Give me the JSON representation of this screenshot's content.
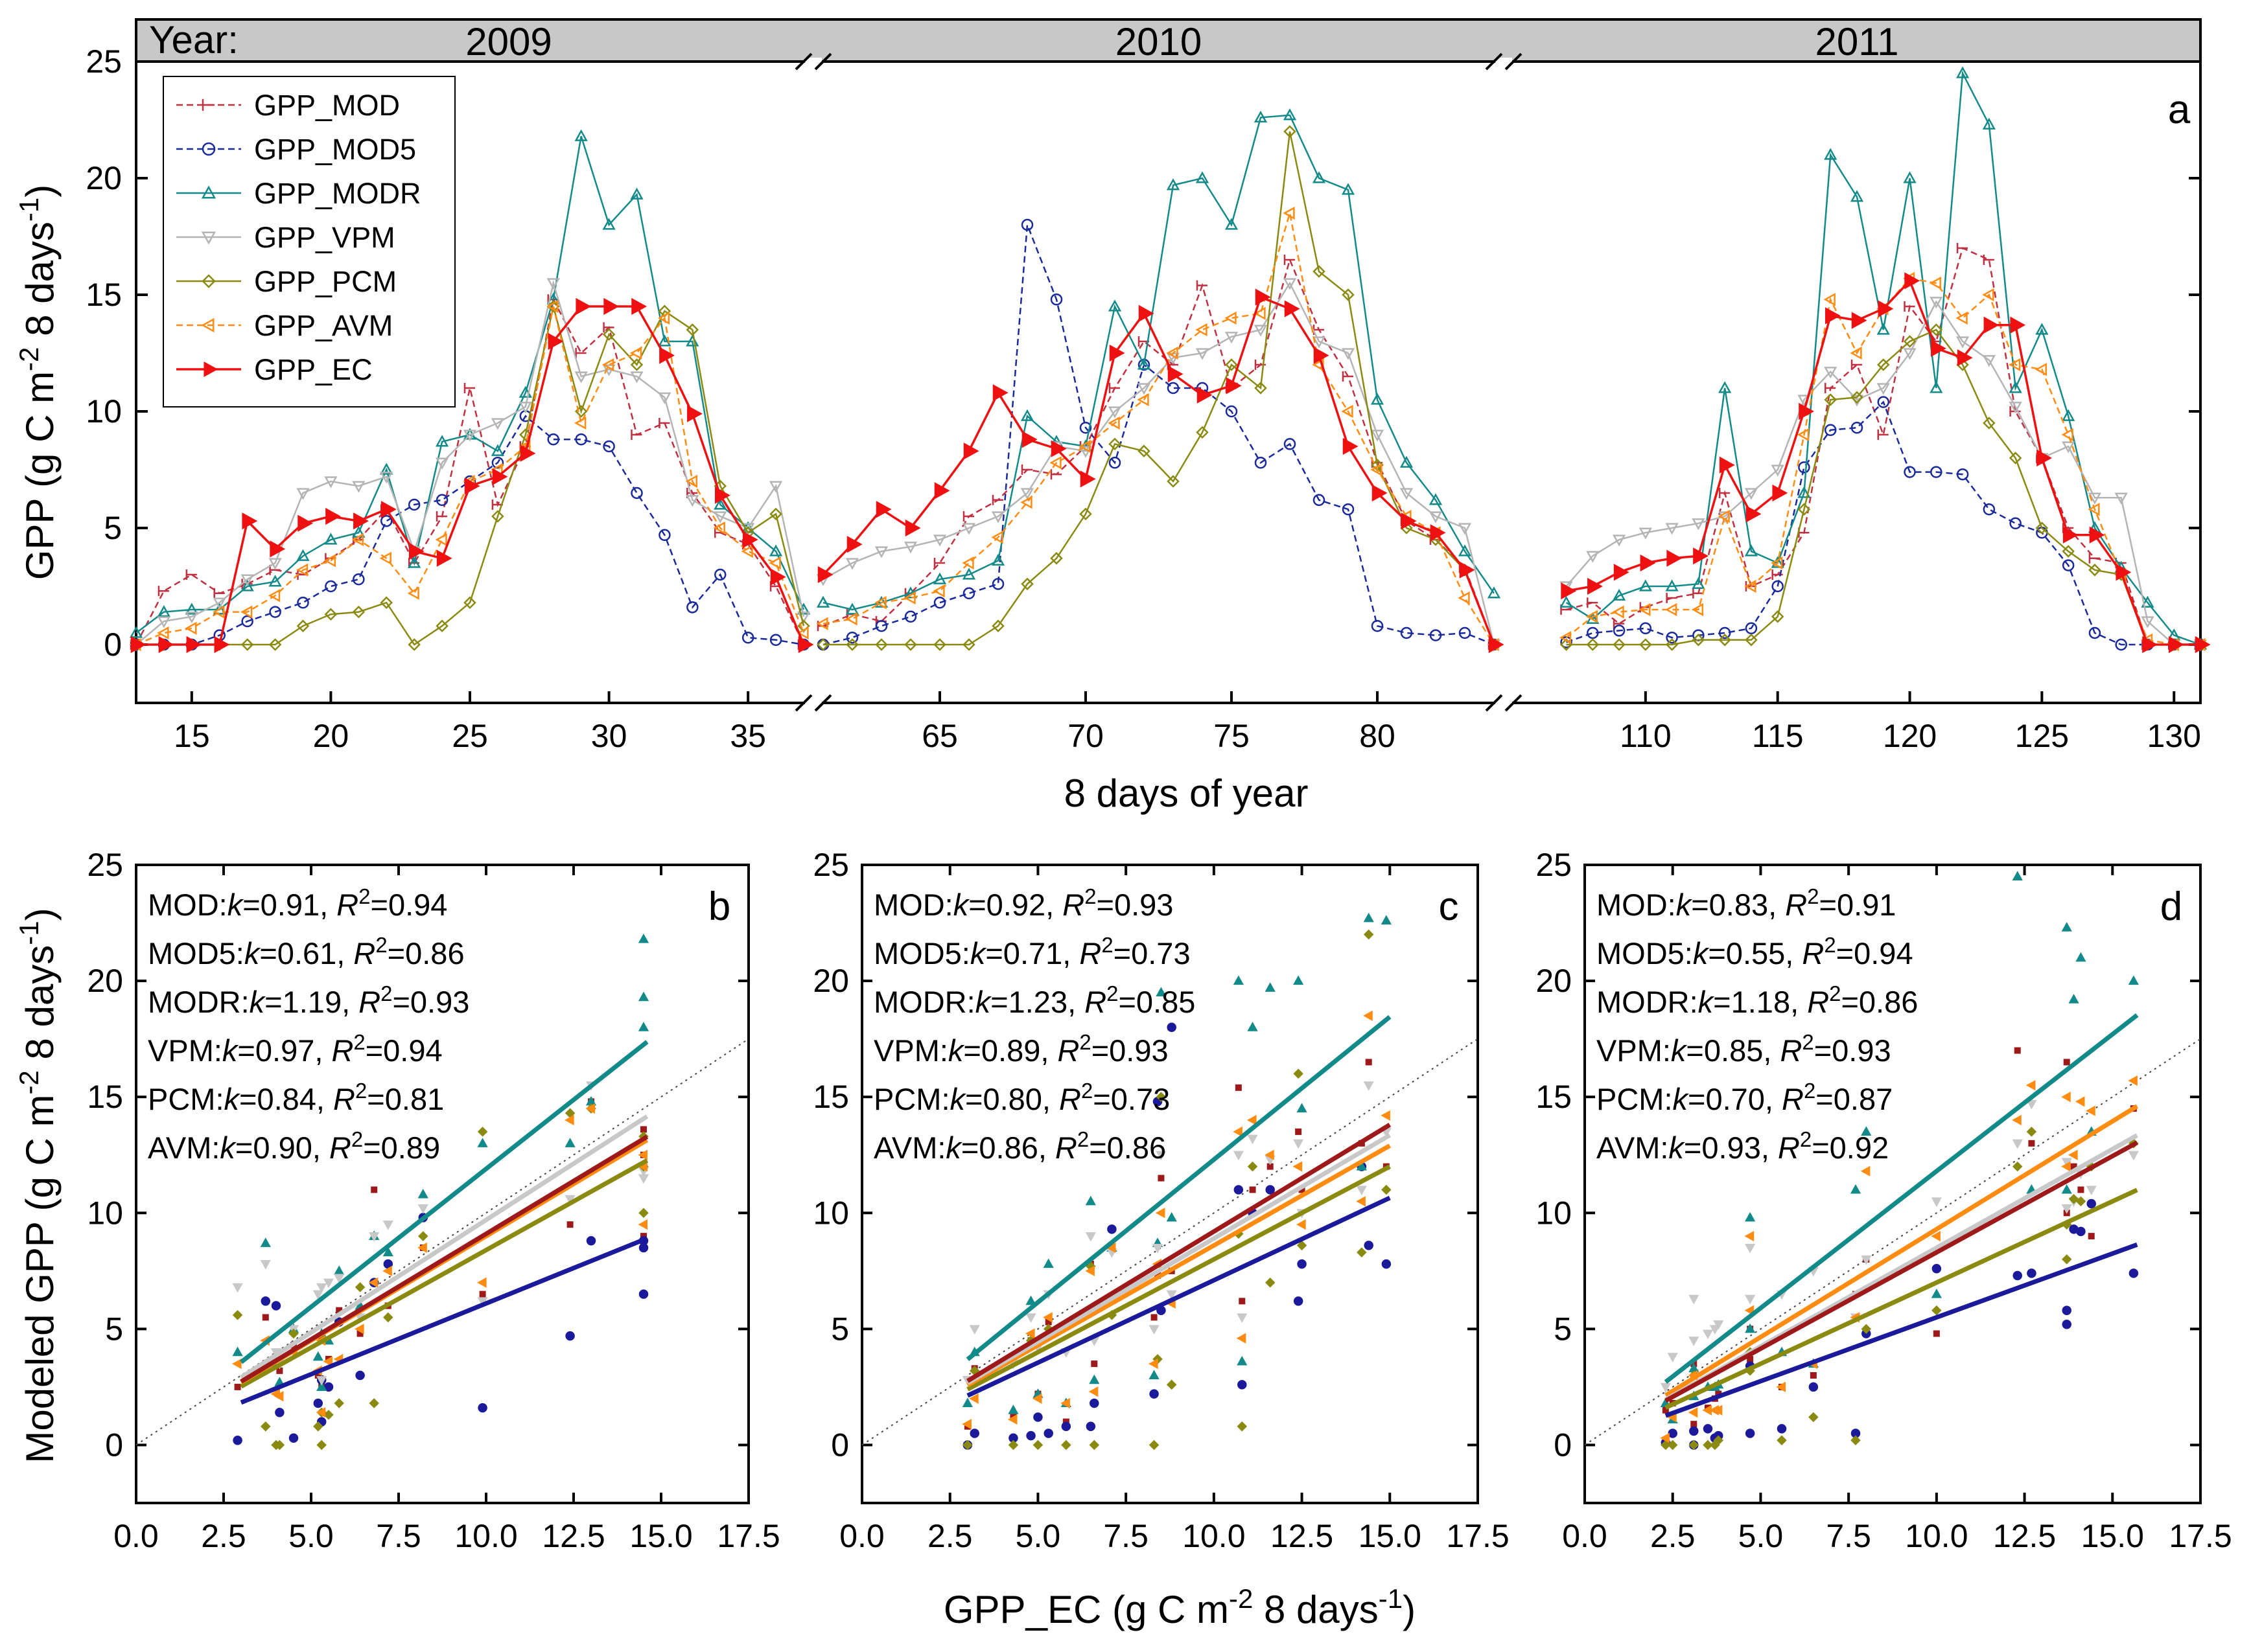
{
  "colors": {
    "GPP_MOD": "#c03040",
    "GPP_MOD5": "#1a2a9a",
    "GPP_MODR": "#138a8a",
    "GPP_VPM": "#b4b4b4",
    "GPP_PCM": "#8a8a10",
    "GPP_AVM": "#ff8c10",
    "GPP_EC": "#ee1111",
    "fit_MOD": "#9e1a1a",
    "fit_MOD5": "#1a1a9a",
    "fit_MODR": "#138a8a",
    "fit_VPM": "#c8c8c8",
    "fit_PCM": "#8a8a10",
    "fit_AVM": "#ff8c10"
  },
  "chart_data": [
    {
      "panel": "a",
      "type": "line",
      "ylabel": "GPP (g C m⁻² 8 days⁻¹)",
      "xlabel": "8 days of year",
      "ylim": [
        -2.5,
        25
      ],
      "yticks": [
        "0",
        "5",
        "10",
        "15",
        "20",
        "25"
      ],
      "year_label": "Year:",
      "years": [
        "2009",
        "2010",
        "2011"
      ],
      "segments": [
        {
          "xlim": [
            13,
            37
          ],
          "ticks": [
            15,
            20,
            25,
            30,
            35
          ],
          "x": [
            13,
            14,
            15,
            16,
            17,
            18,
            19,
            20,
            21,
            22,
            23,
            24,
            25,
            26,
            27,
            28,
            29,
            30,
            31,
            32,
            33,
            34,
            35,
            36,
            37
          ]
        },
        {
          "xlim": [
            61,
            84
          ],
          "ticks": [
            65,
            70,
            75,
            80
          ],
          "x": [
            61,
            62,
            63,
            64,
            65,
            66,
            67,
            68,
            69,
            70,
            71,
            72,
            73,
            74,
            75,
            76,
            77,
            78,
            79,
            80,
            81,
            82,
            83,
            84
          ]
        },
        {
          "xlim": [
            105,
            131
          ],
          "ticks": [
            110,
            115,
            120,
            125,
            130
          ],
          "x": [
            107,
            108,
            109,
            110,
            111,
            112,
            113,
            114,
            115,
            116,
            117,
            118,
            119,
            120,
            121,
            122,
            123,
            124,
            125,
            126,
            127,
            128,
            129,
            130,
            131
          ]
        }
      ],
      "series": [
        {
          "name": "GPP_MOD",
          "values": [
            [
              0,
              2.3,
              3.0,
              2.2,
              2.6,
              3.2,
              3.0,
              3.7,
              4.5,
              5.8,
              3.5,
              5.5,
              11.0,
              6.0,
              8.5,
              14.8,
              12.5,
              13.6,
              9.0,
              9.5,
              6.5,
              4.8,
              4.3,
              2.5,
              0
            ],
            [
              0.8,
              1.3,
              1.0,
              2.2,
              3.5,
              5.5,
              6.2,
              7.5,
              7.3,
              8.5,
              11.0,
              13.0,
              12.0,
              15.4,
              11.0,
              12.0,
              16.5,
              13.5,
              11.5,
              7.8,
              5.3,
              4.5,
              3.3,
              0
            ],
            [
              1.5,
              1.8,
              0.9,
              1.6,
              2.0,
              2.2,
              6.5,
              2.5,
              3.0,
              4.8,
              11.0,
              12.0,
              9.0,
              14.5,
              13.0,
              17.0,
              16.5,
              10.0,
              8.0,
              5.0,
              3.7,
              3.5,
              0,
              0,
              0
            ]
          ]
        },
        {
          "name": "GPP_MOD5",
          "values": [
            [
              0,
              0,
              0,
              0.4,
              1.0,
              1.4,
              1.8,
              2.5,
              2.8,
              5.3,
              6.0,
              6.2,
              7.0,
              7.8,
              9.8,
              8.8,
              8.8,
              8.5,
              6.5,
              4.7,
              1.6,
              3.0,
              0.3,
              0.2,
              0
            ],
            [
              0,
              0.3,
              0.8,
              1.2,
              1.8,
              2.2,
              2.6,
              18.0,
              14.8,
              9.3,
              7.8,
              12.0,
              11.0,
              11.0,
              10.0,
              7.8,
              8.6,
              6.2,
              5.8,
              0.8,
              0.5,
              0.4,
              0.5,
              0
            ],
            [
              0.1,
              0.5,
              0.6,
              0.7,
              0.3,
              0.4,
              0.5,
              0.7,
              2.5,
              7.6,
              9.2,
              9.3,
              10.4,
              7.4,
              7.4,
              7.3,
              5.8,
              5.2,
              4.8,
              3.4,
              0.5,
              0,
              0,
              0,
              0
            ]
          ]
        },
        {
          "name": "GPP_MODR",
          "values": [
            [
              0.5,
              1.4,
              1.5,
              1.5,
              2.5,
              2.7,
              3.8,
              4.5,
              4.8,
              7.5,
              3.5,
              8.7,
              9.0,
              8.3,
              10.8,
              14.8,
              21.8,
              18.0,
              19.3,
              13.0,
              13.0,
              6.0,
              5.0,
              4.0,
              1.5
            ],
            [
              1.8,
              1.5,
              1.8,
              2.2,
              2.8,
              3.0,
              3.6,
              9.8,
              8.7,
              8.5,
              14.5,
              12.0,
              19.7,
              20.0,
              18.0,
              22.6,
              22.7,
              20.0,
              19.5,
              10.5,
              7.8,
              6.2,
              4.0,
              2.2
            ],
            [
              1.8,
              1.1,
              2.1,
              2.5,
              2.5,
              2.6,
              11.0,
              4.0,
              3.5,
              6.5,
              21.0,
              19.2,
              13.5,
              20.0,
              11.0,
              24.5,
              22.3,
              11.0,
              13.5,
              9.8,
              5.0,
              3.3,
              1.8,
              0.4,
              0
            ]
          ]
        },
        {
          "name": "GPP_VPM",
          "values": [
            [
              0,
              1.0,
              1.2,
              1.8,
              2.8,
              3.5,
              6.5,
              7.0,
              6.8,
              7.2,
              4.0,
              7.8,
              9.0,
              9.5,
              10.2,
              15.5,
              11.5,
              11.8,
              11.5,
              10.6,
              6.2,
              5.5,
              5.0,
              6.8,
              1.2
            ],
            [
              2.8,
              3.5,
              4.0,
              4.2,
              4.5,
              5.0,
              5.5,
              6.5,
              8.5,
              8.3,
              10.0,
              11.0,
              12.3,
              12.5,
              13.2,
              13.5,
              15.5,
              13.0,
              12.5,
              9.0,
              6.5,
              5.5,
              5.0,
              0
            ],
            [
              2.5,
              3.8,
              4.5,
              4.8,
              5.0,
              5.2,
              5.5,
              6.5,
              7.5,
              10.5,
              11.7,
              10.5,
              11.0,
              12.5,
              14.7,
              13.0,
              12.2,
              10.2,
              8.0,
              8.5,
              6.3,
              6.3,
              1.0,
              0,
              0
            ]
          ]
        },
        {
          "name": "GPP_PCM",
          "values": [
            [
              0,
              0,
              0,
              0,
              0,
              0,
              0.8,
              1.3,
              1.4,
              1.8,
              0,
              0.8,
              1.8,
              5.5,
              9.0,
              14.5,
              10.0,
              13.3,
              12.0,
              14.3,
              13.5,
              6.8,
              4.8,
              5.6,
              0.8
            ],
            [
              0,
              0,
              0,
              0,
              0,
              0,
              0.8,
              2.6,
              3.7,
              5.6,
              8.6,
              8.3,
              7.0,
              9.1,
              12.0,
              11.0,
              22.0,
              16.0,
              15.0,
              7.7,
              5.0,
              4.5,
              3.2,
              0
            ],
            [
              0,
              0,
              0,
              0,
              0,
              0.2,
              0.2,
              0.2,
              1.2,
              5.8,
              10.5,
              10.6,
              12.0,
              13.0,
              13.5,
              12.0,
              9.5,
              8.0,
              5.0,
              4.0,
              3.2,
              3.0,
              0,
              0,
              0
            ]
          ]
        },
        {
          "name": "GPP_AVM",
          "values": [
            [
              0,
              0.5,
              0.7,
              1.4,
              1.4,
              2.1,
              3.2,
              3.6,
              4.5,
              3.7,
              2.2,
              4.5,
              7.0,
              7.5,
              8.5,
              14.5,
              9.5,
              12.0,
              12.5,
              14.0,
              7.0,
              5.0,
              4.0,
              3.5,
              0.5
            ],
            [
              0.9,
              1.1,
              1.8,
              2.0,
              2.3,
              3.5,
              4.6,
              6.1,
              7.8,
              8.5,
              9.5,
              10.5,
              12.5,
              13.5,
              14.0,
              14.2,
              18.5,
              12.0,
              10.0,
              7.5,
              5.5,
              4.8,
              2.0,
              0
            ],
            [
              0.3,
              1.2,
              1.4,
              1.5,
              1.5,
              1.5,
              5.5,
              2.5,
              3.5,
              9.0,
              14.8,
              12.5,
              14.4,
              15.7,
              15.5,
              14.0,
              15.0,
              12.0,
              11.8,
              9.0,
              5.8,
              3.0,
              0.2,
              0,
              0
            ]
          ]
        },
        {
          "name": "GPP_EC",
          "values": [
            [
              0,
              0,
              0,
              0,
              5.3,
              4.1,
              5.2,
              5.5,
              5.3,
              5.8,
              4.0,
              3.7,
              6.8,
              7.2,
              8.2,
              13.0,
              14.5,
              14.5,
              14.5,
              12.4,
              9.9,
              6.4,
              4.5,
              2.9,
              0
            ],
            [
              3.0,
              4.3,
              5.8,
              5.0,
              6.6,
              8.3,
              10.8,
              8.8,
              8.4,
              7.1,
              12.5,
              14.2,
              11.6,
              10.7,
              11.1,
              14.9,
              14.4,
              12.4,
              8.5,
              6.5,
              5.3,
              4.8,
              3.2,
              0
            ],
            [
              2.3,
              2.5,
              3.1,
              3.5,
              3.7,
              3.8,
              7.7,
              5.6,
              6.5,
              10.0,
              14.1,
              13.9,
              14.4,
              15.6,
              12.7,
              12.3,
              13.7,
              13.7,
              8.0,
              4.7,
              4.7,
              3.1,
              0,
              0,
              0
            ]
          ]
        }
      ]
    },
    {
      "panel": "b",
      "type": "scatter",
      "xlabel": "GPP_EC (g C m⁻² 8 days⁻¹)",
      "ylabel": "Modeled GPP (g C m⁻² 8 days⁻¹)",
      "xlim": [
        0,
        17.5
      ],
      "ylim": [
        -2.5,
        25
      ],
      "xticks": [
        "0.0",
        "2.5",
        "5.0",
        "7.5",
        "10.0",
        "12.5",
        "15.0",
        "17.5"
      ],
      "yticks": [
        "0",
        "5",
        "10",
        "15",
        "20",
        "25"
      ],
      "ec_x": [
        2.9,
        3.0,
        3.7,
        4.0,
        4.1,
        4.5,
        5.0,
        5.2,
        5.3,
        5.5,
        5.8,
        6.4,
        6.8,
        7.2,
        8.2,
        9.9,
        12.4,
        13.0,
        14.5,
        14.5
      ],
      "fit_range": [
        3.0,
        14.6
      ],
      "stats": [
        {
          "label": "MOD:",
          "k": "0.91",
          "r2": "0.94"
        },
        {
          "label": "MOD5:",
          "k": "0.61",
          "r2": "0.86"
        },
        {
          "label": "MODR:",
          "k": "1.19",
          "r2": "0.93"
        },
        {
          "label": "VPM:",
          "k": "0.97",
          "r2": "0.94"
        },
        {
          "label": "PCM:",
          "k": "0.84",
          "r2": "0.81"
        },
        {
          "label": "AVM:",
          "k": "0.90",
          "r2": "0.89"
        }
      ],
      "fits": [
        {
          "model": "MOD",
          "k": 0.91,
          "b": 0.0
        },
        {
          "model": "MOD5",
          "k": 0.61,
          "b": 0.0
        },
        {
          "model": "MODR",
          "k": 1.19,
          "b": 0.0
        },
        {
          "model": "VPM",
          "k": 0.97,
          "b": 0.0
        },
        {
          "model": "PCM",
          "k": 0.84,
          "b": 0.0
        },
        {
          "model": "AVM",
          "k": 0.9,
          "b": 0.0
        }
      ]
    },
    {
      "panel": "c",
      "type": "scatter",
      "xlabel": "GPP_EC (g C m⁻² 8 days⁻¹)",
      "xlim": [
        0,
        17.5
      ],
      "ylim": [
        -2.5,
        25
      ],
      "xticks": [
        "0.0",
        "2.5",
        "5.0",
        "7.5",
        "10.0",
        "12.5",
        "15.0",
        "17.5"
      ],
      "yticks": [
        "0",
        "5",
        "10",
        "15",
        "20",
        "25"
      ],
      "ec_x": [
        3.0,
        3.2,
        4.3,
        4.8,
        5.0,
        5.3,
        5.8,
        6.5,
        6.6,
        7.1,
        8.3,
        8.4,
        8.5,
        8.8,
        10.7,
        10.8,
        11.1,
        11.6,
        12.4,
        12.5,
        14.2,
        14.4,
        14.9
      ],
      "fit_range": [
        3.0,
        15.0
      ],
      "stats": [
        {
          "label": "MOD:",
          "k": "0.92",
          "r2": "0.93"
        },
        {
          "label": "MOD5:",
          "k": "0.71",
          "r2": "0.73"
        },
        {
          "label": "MODR:",
          "k": "1.23",
          "r2": "0.85"
        },
        {
          "label": "VPM:",
          "k": "0.89",
          "r2": "0.93"
        },
        {
          "label": "PCM:",
          "k": "0.80",
          "r2": "0.73"
        },
        {
          "label": "AVM:",
          "k": "0.86",
          "r2": "0.86"
        }
      ],
      "fits": [
        {
          "model": "MOD",
          "k": 0.92,
          "b": 0.0
        },
        {
          "model": "MOD5",
          "k": 0.71,
          "b": 0.0
        },
        {
          "model": "MODR",
          "k": 1.23,
          "b": 0.0
        },
        {
          "model": "VPM",
          "k": 0.89,
          "b": 0.0
        },
        {
          "model": "PCM",
          "k": 0.8,
          "b": 0.0
        },
        {
          "model": "AVM",
          "k": 0.86,
          "b": 0.0
        }
      ]
    },
    {
      "panel": "d",
      "type": "scatter",
      "xlabel": "GPP_EC (g C m⁻² 8 days⁻¹)",
      "xlim": [
        0,
        17.5
      ],
      "ylim": [
        -2.5,
        25
      ],
      "xticks": [
        "0.0",
        "2.5",
        "5.0",
        "7.5",
        "10.0",
        "12.5",
        "15.0",
        "17.5"
      ],
      "yticks": [
        "0",
        "5",
        "10",
        "15",
        "20",
        "25"
      ],
      "ec_x": [
        2.3,
        2.5,
        3.1,
        3.1,
        3.5,
        3.7,
        3.8,
        4.7,
        4.7,
        5.6,
        6.5,
        7.7,
        8.0,
        10.0,
        12.3,
        12.7,
        13.7,
        13.7,
        13.9,
        14.1,
        14.4,
        15.6
      ],
      "fit_range": [
        2.3,
        15.7
      ],
      "stats": [
        {
          "label": "MOD:",
          "k": "0.83",
          "r2": "0.91"
        },
        {
          "label": "MOD5:",
          "k": "0.55",
          "r2": "0.94"
        },
        {
          "label": "MODR:",
          "k": "1.18",
          "r2": "0.86"
        },
        {
          "label": "VPM:",
          "k": "0.85",
          "r2": "0.93"
        },
        {
          "label": "PCM:",
          "k": "0.70",
          "r2": "0.87"
        },
        {
          "label": "AVM:",
          "k": "0.93",
          "r2": "0.92"
        }
      ],
      "fits": [
        {
          "model": "MOD",
          "k": 0.83,
          "b": 0.0
        },
        {
          "model": "MOD5",
          "k": 0.55,
          "b": 0.0
        },
        {
          "model": "MODR",
          "k": 1.18,
          "b": 0.0
        },
        {
          "model": "VPM",
          "k": 0.85,
          "b": 0.0
        },
        {
          "model": "PCM",
          "k": 0.7,
          "b": 0.0
        },
        {
          "model": "AVM",
          "k": 0.93,
          "b": 0.0
        }
      ]
    }
  ]
}
